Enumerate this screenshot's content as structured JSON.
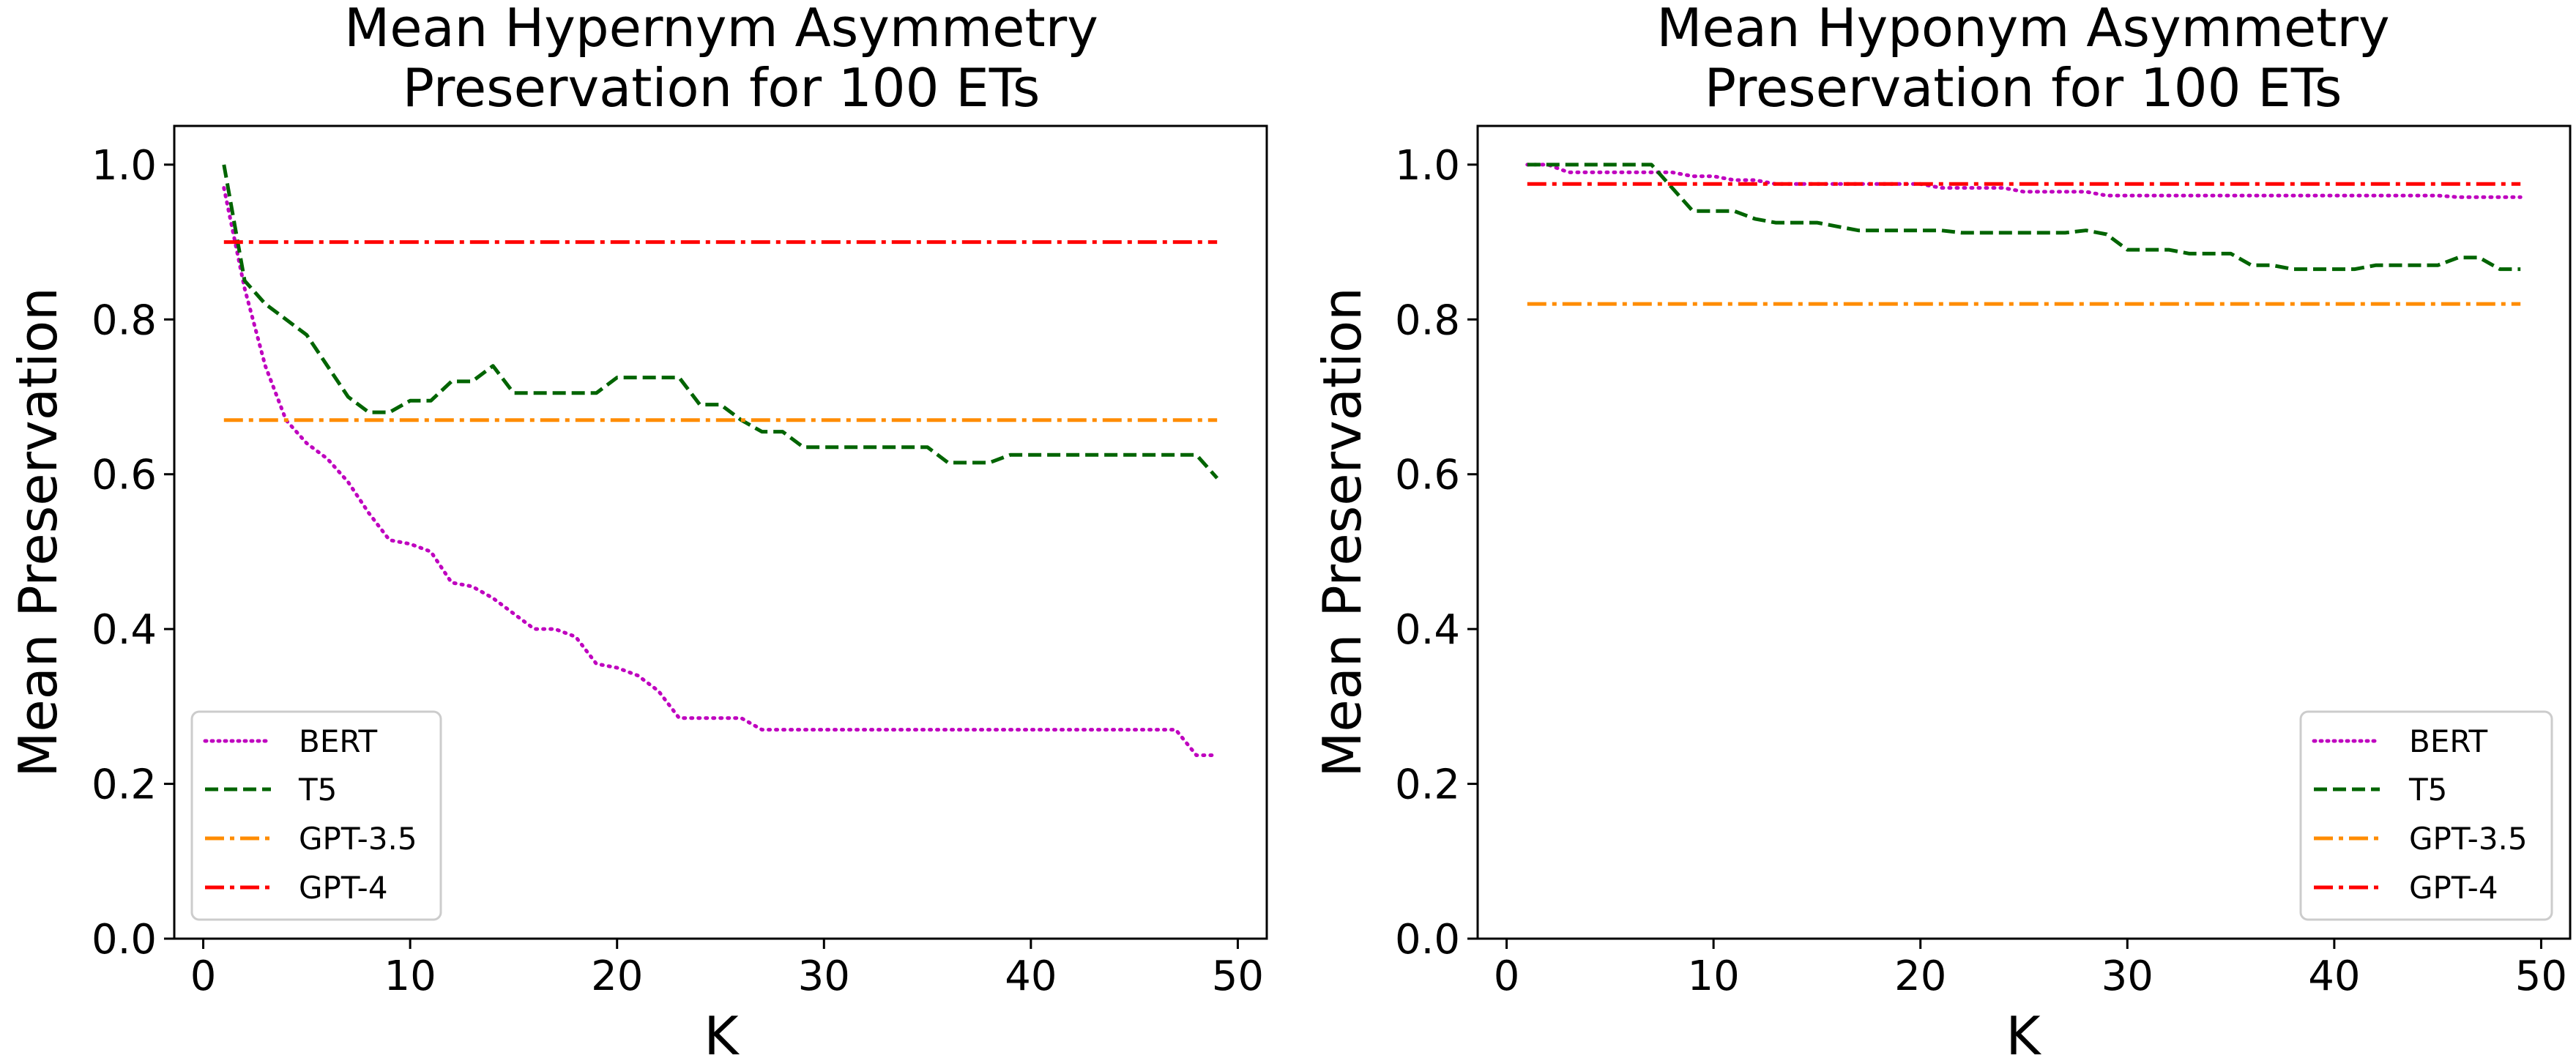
{
  "chart_data": [
    {
      "type": "line",
      "title_line1": "Mean Hypernym Asymmetry",
      "title_line2": "Preservation for 100 ETs",
      "xlabel": "K",
      "ylabel": "Mean Preservation",
      "xlim": [
        -1.4,
        51.4
      ],
      "ylim": [
        0.0,
        1.05
      ],
      "xticks": [
        0,
        10,
        20,
        30,
        40,
        50
      ],
      "yticks": [
        0.0,
        0.2,
        0.4,
        0.6,
        0.8,
        1.0
      ],
      "xtick_labels": [
        "0",
        "10",
        "20",
        "30",
        "40",
        "50"
      ],
      "ytick_labels": [
        "0.0",
        "0.2",
        "0.4",
        "0.6",
        "0.8",
        "1.0"
      ],
      "legend_position": "lower-left",
      "series": [
        {
          "name": "BERT",
          "color": "#bf00bf",
          "style": "dotted",
          "x": [
            1,
            2,
            3,
            4,
            5,
            6,
            7,
            8,
            9,
            10,
            11,
            12,
            13,
            14,
            15,
            16,
            17,
            18,
            19,
            20,
            21,
            22,
            23,
            24,
            25,
            26,
            27,
            28,
            29,
            30,
            31,
            32,
            33,
            34,
            35,
            36,
            37,
            38,
            39,
            40,
            41,
            42,
            43,
            44,
            45,
            46,
            47,
            48,
            49
          ],
          "y": [
            0.97,
            0.84,
            0.74,
            0.67,
            0.64,
            0.62,
            0.59,
            0.55,
            0.515,
            0.51,
            0.5,
            0.46,
            0.455,
            0.44,
            0.42,
            0.4,
            0.4,
            0.39,
            0.355,
            0.35,
            0.34,
            0.32,
            0.285,
            0.285,
            0.285,
            0.285,
            0.27,
            0.27,
            0.27,
            0.27,
            0.27,
            0.27,
            0.27,
            0.27,
            0.27,
            0.27,
            0.27,
            0.27,
            0.27,
            0.27,
            0.27,
            0.27,
            0.27,
            0.27,
            0.27,
            0.27,
            0.27,
            0.237,
            0.237
          ]
        },
        {
          "name": "T5",
          "color": "#006400",
          "style": "dashed",
          "x": [
            1,
            2,
            3,
            4,
            5,
            6,
            7,
            8,
            9,
            10,
            11,
            12,
            13,
            14,
            15,
            16,
            17,
            18,
            19,
            20,
            21,
            22,
            23,
            24,
            25,
            26,
            27,
            28,
            29,
            30,
            31,
            32,
            33,
            34,
            35,
            36,
            37,
            38,
            39,
            40,
            41,
            42,
            43,
            44,
            45,
            46,
            47,
            48,
            49
          ],
          "y": [
            1.0,
            0.85,
            0.82,
            0.8,
            0.78,
            0.74,
            0.7,
            0.68,
            0.68,
            0.695,
            0.695,
            0.72,
            0.72,
            0.74,
            0.705,
            0.705,
            0.705,
            0.705,
            0.705,
            0.725,
            0.725,
            0.725,
            0.725,
            0.69,
            0.69,
            0.67,
            0.655,
            0.655,
            0.635,
            0.635,
            0.635,
            0.635,
            0.635,
            0.635,
            0.635,
            0.615,
            0.615,
            0.615,
            0.625,
            0.625,
            0.625,
            0.625,
            0.625,
            0.625,
            0.625,
            0.625,
            0.625,
            0.625,
            0.595
          ]
        },
        {
          "name": "GPT-3.5",
          "color": "#ff8c00",
          "style": "dashdot",
          "x": [
            1,
            49
          ],
          "y": [
            0.67,
            0.67
          ]
        },
        {
          "name": "GPT-4",
          "color": "#ff0000",
          "style": "dashdot",
          "x": [
            1,
            49
          ],
          "y": [
            0.9,
            0.9
          ]
        }
      ]
    },
    {
      "type": "line",
      "title_line1": "Mean Hyponym Asymmetry",
      "title_line2": "Preservation for 100 ETs",
      "xlabel": "K",
      "ylabel": "Mean Preservation",
      "xlim": [
        -1.4,
        51.4
      ],
      "ylim": [
        0.0,
        1.05
      ],
      "xticks": [
        0,
        10,
        20,
        30,
        40,
        50
      ],
      "yticks": [
        0.0,
        0.2,
        0.4,
        0.6,
        0.8,
        1.0
      ],
      "xtick_labels": [
        "0",
        "10",
        "20",
        "30",
        "40",
        "50"
      ],
      "ytick_labels": [
        "0.0",
        "0.2",
        "0.4",
        "0.6",
        "0.8",
        "1.0"
      ],
      "legend_position": "lower-right",
      "series": [
        {
          "name": "BERT",
          "color": "#bf00bf",
          "style": "dotted",
          "x": [
            1,
            2,
            3,
            4,
            5,
            6,
            7,
            8,
            9,
            10,
            11,
            12,
            13,
            14,
            15,
            16,
            17,
            18,
            19,
            20,
            21,
            22,
            23,
            24,
            25,
            26,
            27,
            28,
            29,
            30,
            31,
            32,
            33,
            34,
            35,
            36,
            37,
            38,
            39,
            40,
            41,
            42,
            43,
            44,
            45,
            46,
            47,
            48,
            49
          ],
          "y": [
            1.0,
            1.0,
            0.99,
            0.99,
            0.99,
            0.99,
            0.99,
            0.99,
            0.985,
            0.985,
            0.98,
            0.98,
            0.975,
            0.975,
            0.975,
            0.975,
            0.975,
            0.975,
            0.975,
            0.975,
            0.97,
            0.97,
            0.97,
            0.97,
            0.965,
            0.965,
            0.965,
            0.965,
            0.96,
            0.96,
            0.96,
            0.96,
            0.96,
            0.96,
            0.96,
            0.96,
            0.96,
            0.96,
            0.96,
            0.96,
            0.96,
            0.96,
            0.96,
            0.96,
            0.96,
            0.958,
            0.958,
            0.958,
            0.958
          ]
        },
        {
          "name": "T5",
          "color": "#006400",
          "style": "dashed",
          "x": [
            1,
            2,
            3,
            4,
            5,
            6,
            7,
            8,
            9,
            10,
            11,
            12,
            13,
            14,
            15,
            16,
            17,
            18,
            19,
            20,
            21,
            22,
            23,
            24,
            25,
            26,
            27,
            28,
            29,
            30,
            31,
            32,
            33,
            34,
            35,
            36,
            37,
            38,
            39,
            40,
            41,
            42,
            43,
            44,
            45,
            46,
            47,
            48,
            49
          ],
          "y": [
            1.0,
            1.0,
            1.0,
            1.0,
            1.0,
            1.0,
            1.0,
            0.97,
            0.94,
            0.94,
            0.94,
            0.93,
            0.925,
            0.925,
            0.925,
            0.92,
            0.915,
            0.915,
            0.915,
            0.915,
            0.915,
            0.912,
            0.912,
            0.912,
            0.912,
            0.912,
            0.912,
            0.915,
            0.91,
            0.89,
            0.89,
            0.89,
            0.885,
            0.885,
            0.885,
            0.87,
            0.87,
            0.865,
            0.865,
            0.865,
            0.865,
            0.87,
            0.87,
            0.87,
            0.87,
            0.88,
            0.88,
            0.865,
            0.865
          ]
        },
        {
          "name": "GPT-3.5",
          "color": "#ff8c00",
          "style": "dashdot",
          "x": [
            1,
            49
          ],
          "y": [
            0.82,
            0.82
          ]
        },
        {
          "name": "GPT-4",
          "color": "#ff0000",
          "style": "dashdot",
          "x": [
            1,
            49
          ],
          "y": [
            0.975,
            0.975
          ]
        }
      ]
    }
  ]
}
